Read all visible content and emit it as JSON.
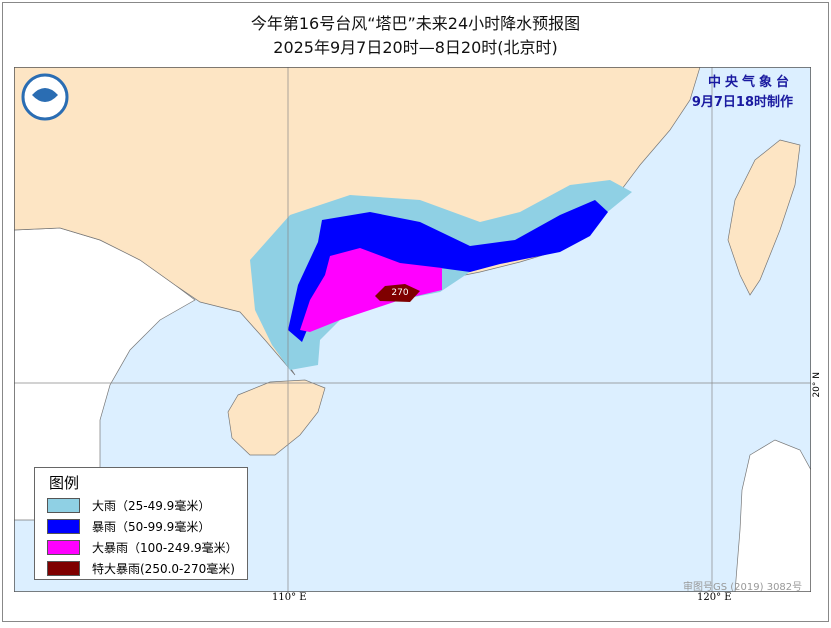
{
  "title": {
    "line1": "今年第16号台风“塔巴”未来24小时降水预报图",
    "line2": "2025年9月7日20时—8日20时(北京时)"
  },
  "agency": {
    "name": "中央气象台",
    "issued": "9月7日18时制作"
  },
  "legend": {
    "title": "图例",
    "items": [
      {
        "label": "大雨（25-49.9毫米）",
        "color": "#8fd0e4"
      },
      {
        "label": "暴雨（50-99.9毫米）",
        "color": "#0000ff"
      },
      {
        "label": "大暴雨（100-249.9毫米）",
        "color": "#ff00ff"
      },
      {
        "label": "特大暴雨(250.0-270毫米)",
        "color": "#7f0000"
      }
    ]
  },
  "map": {
    "max_label": "270",
    "lon_ticks": [
      "110° E",
      "120° E"
    ],
    "lat_tick": "20° N",
    "approval": "审图号GS (2019) 3082号",
    "colors": {
      "land": "#fde5c4",
      "sea": "#dcefff",
      "foreign": "#ffffff"
    }
  }
}
